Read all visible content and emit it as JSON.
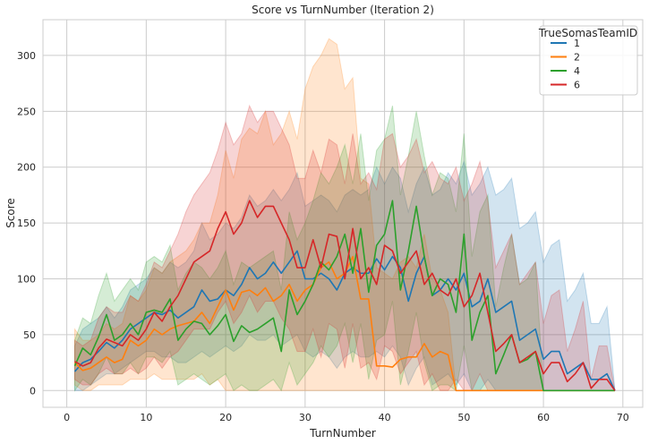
{
  "chart_data": {
    "type": "line",
    "title": "Score vs TurnNumber (Iteration 2)",
    "xlabel": "TurnNumber",
    "ylabel": "Score",
    "xlim": [
      -3,
      72.5
    ],
    "ylim": [
      -15,
      332
    ],
    "xticks": [
      0,
      10,
      20,
      30,
      40,
      50,
      60,
      70
    ],
    "yticks": [
      0,
      50,
      100,
      150,
      200,
      250,
      300
    ],
    "grid": true,
    "band": "confidence interval (shaded)",
    "legend": {
      "title": "TrueSomasTeamID",
      "placement": "top-right"
    },
    "series": [
      {
        "name": "1",
        "color": "#1f77b4",
        "x": [
          1,
          2,
          3,
          4,
          5,
          6,
          7,
          8,
          9,
          10,
          11,
          12,
          13,
          14,
          15,
          16,
          17,
          18,
          19,
          20,
          21,
          22,
          23,
          24,
          25,
          26,
          27,
          28,
          29,
          30,
          31,
          32,
          33,
          34,
          35,
          36,
          37,
          38,
          39,
          40,
          41,
          42,
          43,
          44,
          45,
          46,
          47,
          48,
          49,
          50,
          51,
          52,
          53,
          54,
          55,
          56,
          57,
          58,
          59,
          60,
          61,
          62,
          63,
          64,
          65,
          66,
          67,
          68,
          69
        ],
        "values": [
          17,
          25,
          28,
          35,
          43,
          38,
          45,
          55,
          60,
          65,
          70,
          68,
          72,
          65,
          70,
          75,
          90,
          80,
          82,
          90,
          85,
          95,
          110,
          100,
          105,
          115,
          105,
          115,
          125,
          100,
          100,
          105,
          100,
          90,
          105,
          110,
          105,
          105,
          118,
          108,
          120,
          110,
          80,
          105,
          120,
          85,
          90,
          100,
          90,
          105,
          75,
          80,
          100,
          70,
          75,
          80,
          45,
          50,
          55,
          28,
          35,
          35,
          15,
          20,
          25,
          10,
          10,
          15,
          0
        ],
        "lower": [
          0,
          0,
          5,
          10,
          15,
          15,
          20,
          25,
          30,
          35,
          35,
          30,
          30,
          25,
          25,
          30,
          35,
          30,
          35,
          40,
          35,
          40,
          50,
          45,
          45,
          50,
          40,
          45,
          50,
          35,
          30,
          35,
          30,
          20,
          30,
          35,
          30,
          30,
          35,
          30,
          40,
          30,
          5,
          20,
          30,
          5,
          10,
          15,
          5,
          15,
          0,
          0,
          10,
          0,
          0,
          0,
          0,
          0,
          0,
          0,
          0,
          0,
          0,
          0,
          0,
          0,
          0,
          0,
          0
        ],
        "upper": [
          40,
          55,
          60,
          65,
          75,
          65,
          75,
          90,
          95,
          100,
          110,
          105,
          115,
          110,
          115,
          125,
          150,
          135,
          140,
          150,
          145,
          155,
          175,
          165,
          170,
          180,
          170,
          180,
          195,
          165,
          170,
          175,
          170,
          160,
          175,
          180,
          175,
          180,
          200,
          185,
          200,
          190,
          160,
          185,
          200,
          175,
          180,
          195,
          185,
          205,
          175,
          185,
          200,
          175,
          180,
          190,
          145,
          150,
          160,
          115,
          130,
          135,
          80,
          90,
          105,
          60,
          60,
          75,
          0
        ]
      },
      {
        "name": "2",
        "color": "#ff7f0e",
        "x": [
          1,
          2,
          3,
          4,
          5,
          6,
          7,
          8,
          9,
          10,
          11,
          12,
          13,
          14,
          15,
          16,
          17,
          18,
          19,
          20,
          21,
          22,
          23,
          24,
          25,
          26,
          27,
          28,
          29,
          30,
          31,
          32,
          33,
          34,
          35,
          36,
          37,
          38,
          39,
          40,
          41,
          42,
          43,
          44,
          45,
          46,
          47,
          48,
          49,
          50,
          51,
          52,
          53,
          54,
          55,
          56,
          57,
          58,
          59,
          60,
          61,
          62,
          63,
          64,
          65,
          66,
          67,
          68,
          69
        ],
        "values": [
          25,
          18,
          20,
          25,
          30,
          25,
          28,
          45,
          40,
          45,
          55,
          50,
          55,
          58,
          60,
          62,
          70,
          60,
          75,
          90,
          72,
          88,
          90,
          85,
          92,
          80,
          85,
          95,
          80,
          90,
          95,
          110,
          115,
          100,
          105,
          120,
          82,
          82,
          22,
          22,
          21,
          28,
          30,
          30,
          42,
          30,
          35,
          32,
          0,
          0,
          0,
          0,
          0,
          0,
          0,
          0,
          0,
          0,
          0,
          0,
          0,
          0,
          0,
          0,
          0,
          0,
          0,
          0,
          0
        ],
        "lower": [
          5,
          0,
          0,
          5,
          5,
          5,
          5,
          10,
          10,
          10,
          15,
          10,
          10,
          10,
          10,
          10,
          15,
          5,
          10,
          0,
          0,
          0,
          0,
          0,
          0,
          0,
          0,
          0,
          0,
          0,
          0,
          0,
          0,
          0,
          0,
          0,
          0,
          0,
          0,
          0,
          0,
          0,
          0,
          0,
          0,
          0,
          0,
          0,
          0,
          0,
          0,
          0,
          0,
          0,
          0,
          0,
          0,
          0,
          0,
          0,
          0,
          0,
          0,
          0,
          0,
          0,
          0,
          0,
          0
        ],
        "upper": [
          55,
          45,
          45,
          50,
          60,
          55,
          60,
          85,
          80,
          90,
          110,
          105,
          115,
          120,
          125,
          135,
          150,
          150,
          175,
          215,
          190,
          225,
          235,
          230,
          250,
          220,
          230,
          250,
          225,
          270,
          290,
          300,
          315,
          310,
          270,
          280,
          190,
          185,
          110,
          105,
          100,
          115,
          120,
          110,
          140,
          100,
          90,
          70,
          0,
          0,
          0,
          0,
          0,
          0,
          0,
          0,
          0,
          0,
          0,
          0,
          0,
          0,
          0,
          0,
          0,
          0,
          0,
          0,
          0
        ]
      },
      {
        "name": "4",
        "color": "#2ca02c",
        "x": [
          1,
          2,
          3,
          4,
          5,
          6,
          7,
          8,
          9,
          10,
          11,
          12,
          13,
          14,
          15,
          16,
          17,
          18,
          19,
          20,
          21,
          22,
          23,
          24,
          25,
          26,
          27,
          28,
          29,
          30,
          31,
          32,
          33,
          34,
          35,
          36,
          37,
          38,
          39,
          40,
          41,
          42,
          43,
          44,
          45,
          46,
          47,
          48,
          49,
          50,
          51,
          52,
          53,
          54,
          55,
          56,
          57,
          58,
          59,
          60,
          61,
          62,
          63,
          64,
          65,
          66,
          67,
          68,
          69
        ],
        "values": [
          22,
          38,
          32,
          48,
          68,
          45,
          50,
          60,
          50,
          70,
          72,
          70,
          82,
          45,
          55,
          62,
          60,
          50,
          58,
          68,
          44,
          58,
          52,
          55,
          60,
          65,
          35,
          90,
          68,
          80,
          95,
          115,
          108,
          120,
          140,
          105,
          145,
          88,
          130,
          140,
          170,
          90,
          125,
          165,
          120,
          85,
          100,
          95,
          70,
          140,
          45,
          70,
          85,
          15,
          32,
          50,
          25,
          28,
          35,
          0,
          0,
          0,
          0,
          0,
          0,
          0,
          0,
          0,
          0
        ],
        "lower": [
          0,
          10,
          5,
          15,
          30,
          15,
          15,
          25,
          15,
          30,
          30,
          25,
          35,
          5,
          10,
          15,
          10,
          5,
          10,
          15,
          0,
          5,
          0,
          0,
          5,
          10,
          0,
          25,
          5,
          15,
          25,
          40,
          30,
          40,
          60,
          25,
          60,
          10,
          45,
          50,
          80,
          5,
          35,
          70,
          25,
          0,
          5,
          5,
          0,
          40,
          0,
          0,
          0,
          0,
          0,
          0,
          0,
          0,
          0,
          0,
          0,
          0,
          0,
          0,
          0,
          0,
          0,
          0,
          0
        ],
        "upper": [
          45,
          65,
          60,
          85,
          105,
          80,
          90,
          100,
          90,
          115,
          120,
          115,
          130,
          90,
          105,
          115,
          110,
          100,
          110,
          125,
          95,
          115,
          110,
          115,
          120,
          125,
          90,
          160,
          135,
          150,
          170,
          195,
          185,
          200,
          220,
          185,
          230,
          170,
          215,
          225,
          255,
          175,
          210,
          250,
          210,
          175,
          195,
          190,
          160,
          230,
          120,
          160,
          175,
          75,
          110,
          140,
          95,
          100,
          115,
          0,
          0,
          0,
          0,
          0,
          0,
          0,
          0,
          0,
          0
        ]
      },
      {
        "name": "6",
        "color": "#d62728",
        "x": [
          1,
          2,
          3,
          4,
          5,
          6,
          7,
          8,
          9,
          10,
          11,
          12,
          13,
          14,
          15,
          16,
          17,
          18,
          19,
          20,
          21,
          22,
          23,
          24,
          25,
          26,
          27,
          28,
          29,
          30,
          31,
          32,
          33,
          34,
          35,
          36,
          37,
          38,
          39,
          40,
          41,
          42,
          43,
          44,
          45,
          46,
          47,
          48,
          49,
          50,
          51,
          52,
          53,
          54,
          55,
          56,
          57,
          58,
          59,
          60,
          61,
          62,
          63,
          64,
          65,
          66,
          67,
          68,
          69
        ],
        "values": [
          26,
          22,
          25,
          38,
          46,
          43,
          40,
          50,
          45,
          55,
          70,
          62,
          75,
          85,
          100,
          115,
          120,
          125,
          145,
          160,
          140,
          150,
          170,
          155,
          165,
          165,
          150,
          135,
          110,
          110,
          135,
          110,
          140,
          138,
          100,
          145,
          100,
          110,
          95,
          130,
          125,
          105,
          115,
          125,
          95,
          105,
          90,
          85,
          100,
          75,
          85,
          105,
          70,
          35,
          42,
          50,
          25,
          30,
          35,
          15,
          25,
          25,
          8,
          15,
          25,
          2,
          10,
          10,
          0
        ],
        "lower": [
          10,
          5,
          5,
          15,
          20,
          15,
          15,
          20,
          15,
          20,
          30,
          20,
          30,
          35,
          45,
          55,
          55,
          55,
          70,
          80,
          60,
          70,
          85,
          70,
          80,
          80,
          65,
          55,
          35,
          35,
          55,
          30,
          60,
          55,
          20,
          60,
          20,
          25,
          10,
          40,
          35,
          15,
          25,
          35,
          5,
          15,
          0,
          0,
          10,
          0,
          0,
          15,
          0,
          0,
          0,
          0,
          0,
          0,
          0,
          0,
          0,
          0,
          0,
          0,
          0,
          0,
          0,
          0,
          0
        ],
        "upper": [
          45,
          40,
          45,
          65,
          75,
          70,
          70,
          85,
          80,
          95,
          115,
          110,
          125,
          140,
          160,
          175,
          185,
          195,
          215,
          240,
          220,
          230,
          255,
          240,
          250,
          250,
          235,
          220,
          190,
          190,
          215,
          195,
          225,
          220,
          185,
          230,
          185,
          195,
          180,
          225,
          230,
          200,
          210,
          225,
          195,
          205,
          190,
          185,
          200,
          170,
          185,
          205,
          170,
          110,
          125,
          140,
          95,
          105,
          115,
          60,
          85,
          90,
          35,
          55,
          80,
          10,
          40,
          40,
          0
        ]
      }
    ]
  }
}
